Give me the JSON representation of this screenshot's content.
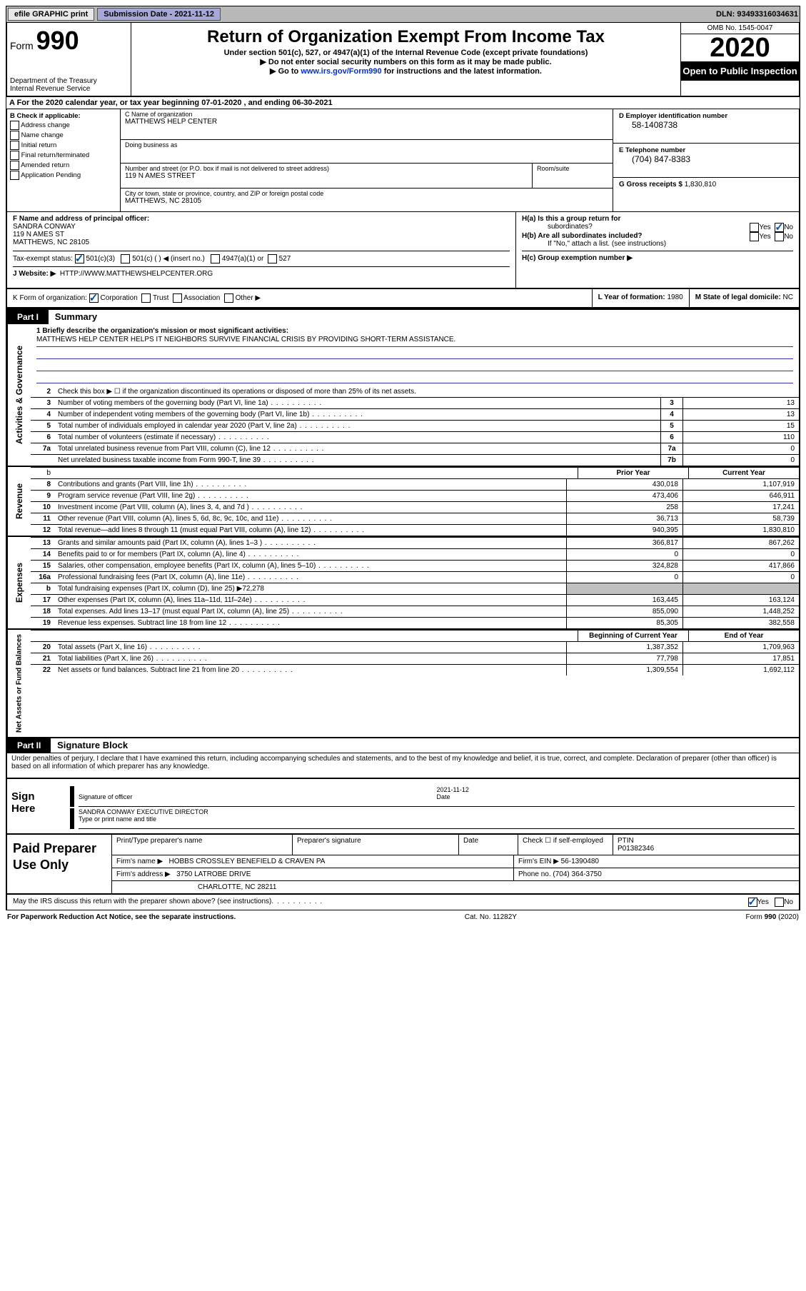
{
  "topbar": {
    "efile": "efile GRAPHIC print",
    "submission_label": "Submission Date - 2021-11-12",
    "dln": "DLN: 93493316034631"
  },
  "header": {
    "form_label": "Form",
    "form_number": "990",
    "title": "Return of Organization Exempt From Income Tax",
    "subtitle": "Under section 501(c), 527, or 4947(a)(1) of the Internal Revenue Code (except private foundations)",
    "note1": "▶ Do not enter social security numbers on this form as it may be made public.",
    "note2_pre": "▶ Go to ",
    "note2_link": "www.irs.gov/Form990",
    "note2_post": " for instructions and the latest information.",
    "dept": "Department of the Treasury\nInternal Revenue Service",
    "omb": "OMB No. 1545-0047",
    "year": "2020",
    "open_public": "Open to Public Inspection"
  },
  "rowA": "A For the 2020 calendar year, or tax year beginning 07-01-2020   , and ending 06-30-2021",
  "B": {
    "header": "B Check if applicable:",
    "addr_change": "Address change",
    "name_change": "Name change",
    "initial": "Initial return",
    "final": "Final return/terminated",
    "amended": "Amended return",
    "app_pending": "Application Pending"
  },
  "C": {
    "name_label": "C Name of organization",
    "name": "MATTHEWS HELP CENTER",
    "dba_label": "Doing business as",
    "dba": "",
    "street_label": "Number and street (or P.O. box if mail is not delivered to street address)",
    "street": "119 N AMES STREET",
    "suite_label": "Room/suite",
    "suite": "",
    "city_label": "City or town, state or province, country, and ZIP or foreign postal code",
    "city": "MATTHEWS, NC  28105"
  },
  "D": {
    "label": "D Employer identification number",
    "val": "58-1408738"
  },
  "E": {
    "label": "E Telephone number",
    "val": "(704) 847-8383"
  },
  "G": {
    "label": "G Gross receipts $",
    "val": "1,830,810"
  },
  "F": {
    "label": "F  Name and address of principal officer:",
    "name": "SANDRA CONWAY",
    "street": "119 N AMES ST",
    "city": "MATTHEWS, NC  28105"
  },
  "H": {
    "a_label": "H(a)  Is this a group return for",
    "a_label2": "subordinates?",
    "a_no_checked": true,
    "b_label": "H(b)  Are all subordinates included?",
    "b_note": "If \"No,\" attach a list. (see instructions)",
    "c_label": "H(c)  Group exemption number ▶",
    "c_val": ""
  },
  "I": {
    "label": "Tax-exempt status:",
    "c3": "501(c)(3)",
    "c": "501(c) (  ) ◀ (insert no.)",
    "a1": "4947(a)(1) or",
    "s527": "527"
  },
  "J": {
    "label": "J   Website: ▶",
    "val": "HTTP://WWW.MATTHEWSHELPCENTER.ORG"
  },
  "K": {
    "label": "K Form of organization:",
    "corp": "Corporation",
    "trust": "Trust",
    "assoc": "Association",
    "other": "Other ▶"
  },
  "L": {
    "label": "L Year of formation:",
    "val": "1980"
  },
  "M": {
    "label": "M State of legal domicile:",
    "val": "NC"
  },
  "part1": {
    "header": "Part I",
    "title": "Summary"
  },
  "summary": {
    "line1_label": "1   Briefly describe the organization's mission or most significant activities:",
    "mission": "MATTHEWS HELP CENTER HELPS IT NEIGHBORS SURVIVE FINANCIAL CRISIS BY PROVIDING SHORT-TERM ASSISTANCE.",
    "line2": "Check this box ▶ ☐  if the organization discontinued its operations or disposed of more than 25% of its net assets.",
    "lines_simple": [
      {
        "n": "3",
        "desc": "Number of voting members of the governing body (Part VI, line 1a)",
        "box": "3",
        "val": "13"
      },
      {
        "n": "4",
        "desc": "Number of independent voting members of the governing body (Part VI, line 1b)",
        "box": "4",
        "val": "13"
      },
      {
        "n": "5",
        "desc": "Total number of individuals employed in calendar year 2020 (Part V, line 2a)",
        "box": "5",
        "val": "15"
      },
      {
        "n": "6",
        "desc": "Total number of volunteers (estimate if necessary)",
        "box": "6",
        "val": "110"
      },
      {
        "n": "7a",
        "desc": "Total unrelated business revenue from Part VIII, column (C), line 12",
        "box": "7a",
        "val": "0"
      },
      {
        "n": "",
        "desc": "Net unrelated business taxable income from Form 990-T, line 39",
        "box": "7b",
        "val": "0"
      }
    ],
    "prior_header": "Prior Year",
    "current_header": "Current Year",
    "revenue": [
      {
        "n": "8",
        "desc": "Contributions and grants (Part VIII, line 1h)",
        "prior": "430,018",
        "curr": "1,107,919"
      },
      {
        "n": "9",
        "desc": "Program service revenue (Part VIII, line 2g)",
        "prior": "473,406",
        "curr": "646,911"
      },
      {
        "n": "10",
        "desc": "Investment income (Part VIII, column (A), lines 3, 4, and 7d )",
        "prior": "258",
        "curr": "17,241"
      },
      {
        "n": "11",
        "desc": "Other revenue (Part VIII, column (A), lines 5, 6d, 8c, 9c, 10c, and 11e)",
        "prior": "36,713",
        "curr": "58,739"
      },
      {
        "n": "12",
        "desc": "Total revenue—add lines 8 through 11 (must equal Part VIII, column (A), line 12)",
        "prior": "940,395",
        "curr": "1,830,810"
      }
    ],
    "expenses": [
      {
        "n": "13",
        "desc": "Grants and similar amounts paid (Part IX, column (A), lines 1–3 )",
        "prior": "366,817",
        "curr": "867,262"
      },
      {
        "n": "14",
        "desc": "Benefits paid to or for members (Part IX, column (A), line 4)",
        "prior": "0",
        "curr": "0"
      },
      {
        "n": "15",
        "desc": "Salaries, other compensation, employee benefits (Part IX, column (A), lines 5–10)",
        "prior": "324,828",
        "curr": "417,866"
      },
      {
        "n": "16a",
        "desc": "Professional fundraising fees (Part IX, column (A), line 11e)",
        "prior": "0",
        "curr": "0"
      },
      {
        "n": "b",
        "desc": "Total fundraising expenses (Part IX, column (D), line 25) ▶72,278",
        "prior": "",
        "curr": "",
        "grey": true
      },
      {
        "n": "17",
        "desc": "Other expenses (Part IX, column (A), lines 11a–11d, 11f–24e)",
        "prior": "163,445",
        "curr": "163,124"
      },
      {
        "n": "18",
        "desc": "Total expenses. Add lines 13–17 (must equal Part IX, column (A), line 25)",
        "prior": "855,090",
        "curr": "1,448,252"
      },
      {
        "n": "19",
        "desc": "Revenue less expenses. Subtract line 18 from line 12",
        "prior": "85,305",
        "curr": "382,558"
      }
    ],
    "begin_header": "Beginning of Current Year",
    "end_header": "End of Year",
    "netassets": [
      {
        "n": "20",
        "desc": "Total assets (Part X, line 16)",
        "prior": "1,387,352",
        "curr": "1,709,963"
      },
      {
        "n": "21",
        "desc": "Total liabilities (Part X, line 26)",
        "prior": "77,798",
        "curr": "17,851"
      },
      {
        "n": "22",
        "desc": "Net assets or fund balances. Subtract line 21 from line 20",
        "prior": "1,309,554",
        "curr": "1,692,112"
      }
    ]
  },
  "side_labels": {
    "gov": "Activities & Governance",
    "rev": "Revenue",
    "exp": "Expenses",
    "net": "Net Assets or Fund Balances"
  },
  "part2": {
    "header": "Part II",
    "title": "Signature Block"
  },
  "perjury": "Under penalties of perjury, I declare that I have examined this return, including accompanying schedules and statements, and to the best of my knowledge and belief, it is true, correct, and complete. Declaration of preparer (other than officer) is based on all information of which preparer has any knowledge.",
  "sign": {
    "left": "Sign Here",
    "sig_label": "Signature of officer",
    "date_label": "Date",
    "date_val": "2021-11-12",
    "name": "SANDRA CONWAY  EXECUTIVE DIRECTOR",
    "name_label": "Type or print name and title"
  },
  "preparer": {
    "left": "Paid Preparer Use Only",
    "name_label": "Print/Type preparer's name",
    "sig_label": "Preparer's signature",
    "date_label": "Date",
    "check_label": "Check ☐ if self-employed",
    "ptin_label": "PTIN",
    "ptin_val": "P01382346",
    "firm_name_label": "Firm's name    ▶",
    "firm_name": "HOBBS CROSSLEY BENEFIELD & CRAVEN PA",
    "firm_ein_label": "Firm's EIN ▶",
    "firm_ein": "56-1390480",
    "firm_addr_label": "Firm's address ▶",
    "firm_addr1": "3750 LATROBE DRIVE",
    "firm_addr2": "CHARLOTTE, NC  28211",
    "phone_label": "Phone no.",
    "phone": "(704) 364-3750"
  },
  "discuss": {
    "q": "May the IRS discuss this return with the preparer shown above? (see instructions)",
    "yes": "Yes",
    "no": "No"
  },
  "footer": {
    "left": "For Paperwork Reduction Act Notice, see the separate instructions.",
    "mid": "Cat. No. 11282Y",
    "right": "Form 990 (2020)"
  }
}
